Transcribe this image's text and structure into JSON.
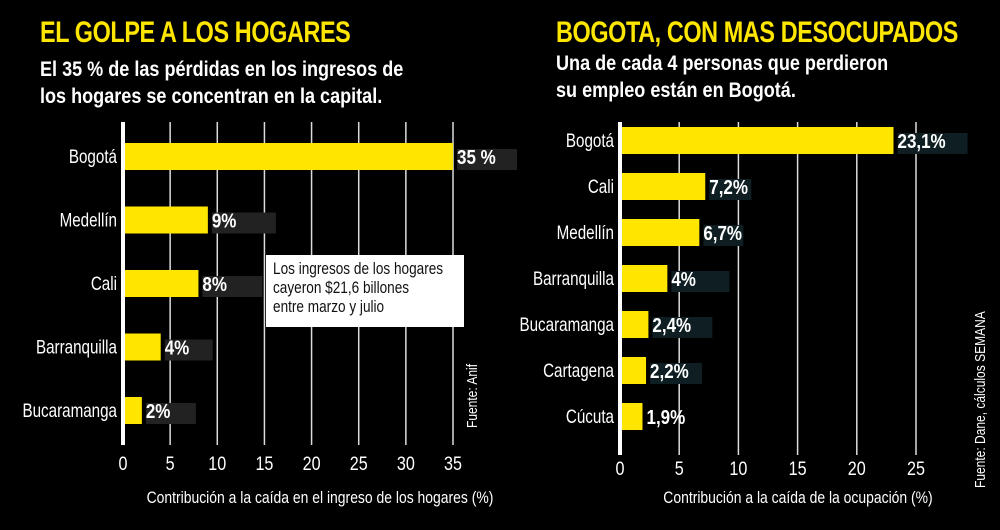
{
  "left": {
    "title": "EL GOLPE A LOS HOGARES",
    "subtitle_lines": [
      "El 35 % de las pérdidas en los ingresos de",
      "los hogares se concentran en la capital."
    ],
    "note_lines": [
      "Los ingresos de los hogares",
      "cayeron $21,6 billones",
      "entre marzo y julio"
    ],
    "source": "Fuente: Anif"
  },
  "right": {
    "title": "BOGOTA, CON MAS DESOCUPADOS",
    "subtitle_lines": [
      "Una de cada 4 personas que perdieron",
      "su empleo están en Bogotá."
    ],
    "source": "Fuente: Dane, cálculos SEMANA"
  },
  "colors": {
    "bar": "#ffe600",
    "background": "#000000",
    "label_box": "#222222"
  },
  "chart_data": [
    {
      "type": "bar",
      "orientation": "horizontal",
      "categories": [
        "Bogotá",
        "Medellín",
        "Cali",
        "Barranquilla",
        "Bucaramanga"
      ],
      "values": [
        35,
        9,
        8,
        4,
        2
      ],
      "data_labels": [
        "35 %",
        "9%",
        "8%",
        "4%",
        "2%"
      ],
      "xlabel": "Contribución a la caída en el ingreso de los hogares (%)",
      "xlim": [
        0,
        35
      ],
      "xticks": [
        "0",
        "5",
        "10",
        "15",
        "20",
        "25",
        "30",
        "35"
      ],
      "grid": true
    },
    {
      "type": "bar",
      "orientation": "horizontal",
      "categories": [
        "Bogotá",
        "Cali",
        "Medellín",
        "Barranquilla",
        "Bucaramanga",
        "Cartagena",
        "Cúcuta"
      ],
      "values": [
        23.1,
        7.2,
        6.7,
        4,
        2.4,
        2.2,
        1.9
      ],
      "data_labels": [
        "23,1%",
        "7,2%",
        "6,7%",
        "4%",
        "2,4%",
        "2,2%",
        "1,9%"
      ],
      "xlabel": "Contribución a la caída de la ocupación (%)",
      "xlim": [
        0,
        25
      ],
      "xticks": [
        "0",
        "5",
        "10",
        "15",
        "20",
        "25"
      ],
      "grid": true
    }
  ]
}
